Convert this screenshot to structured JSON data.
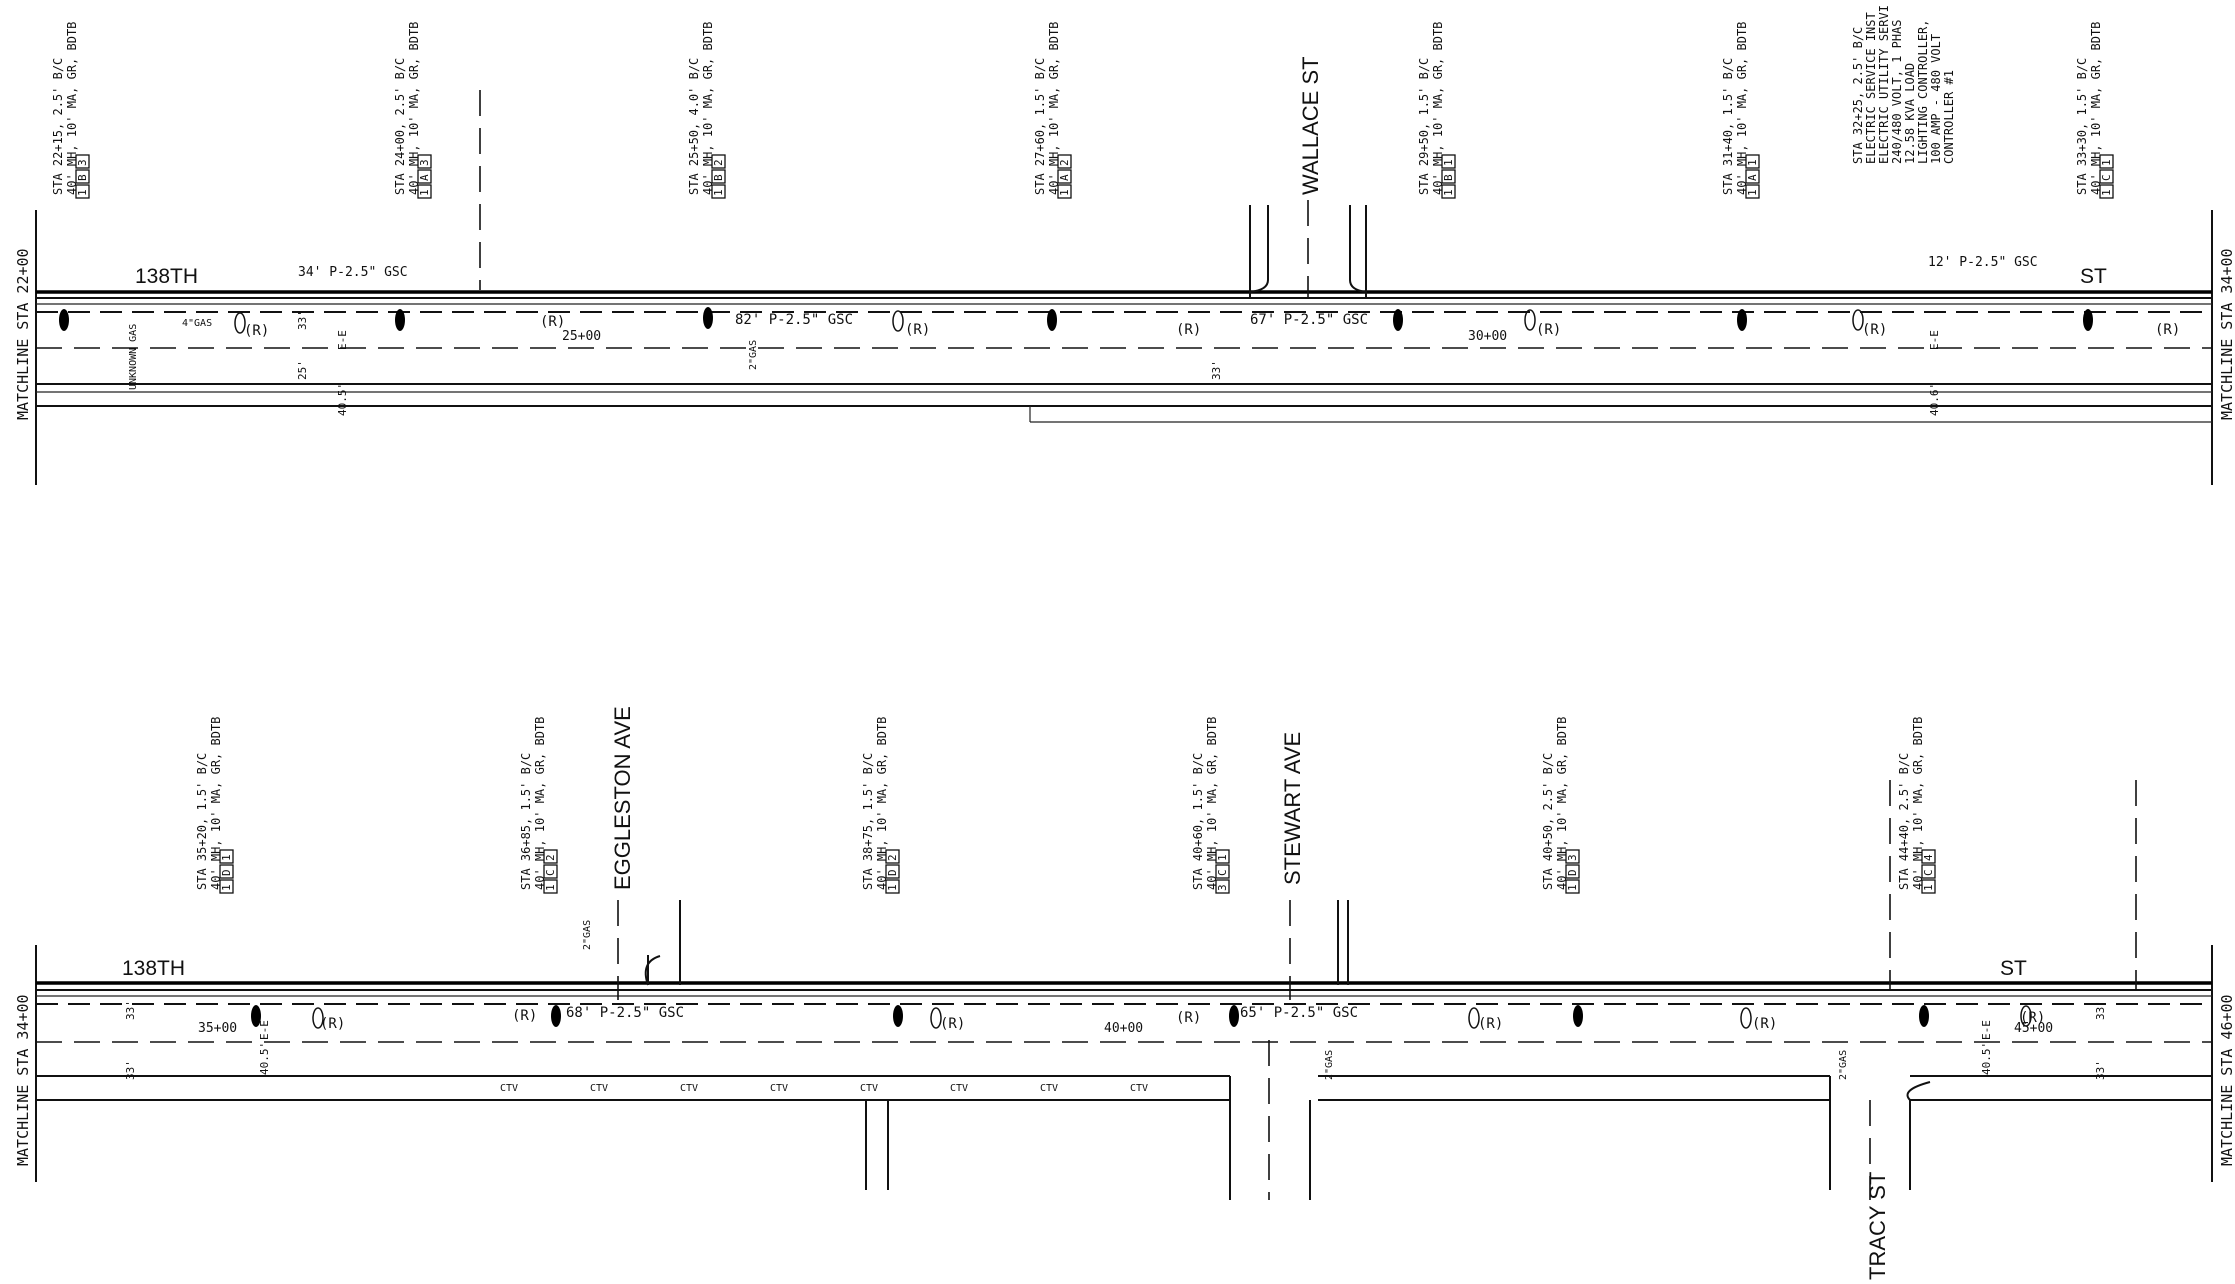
{
  "top_plan": {
    "matchline_left": "MATCHLINE STA 22+00",
    "matchline_right": "MATCHLINE STA 34+00",
    "street_west": "138TH",
    "street_east": "ST",
    "cross_street": "WALLACE ST",
    "station_labels": [
      "25+00",
      "30+00"
    ],
    "poles": [
      {
        "line1": "STA 22+15, 2.5' B/C",
        "line2": "40' MH, 10' MA, GR, BDTB",
        "boxes": [
          "1",
          "B",
          "3"
        ]
      },
      {
        "line1": "STA 24+00, 2.5' B/C",
        "line2": "40' MH, 10' MA, GR, BDTB",
        "boxes": [
          "1",
          "A",
          "3"
        ]
      },
      {
        "line1": "STA 25+50, 4.0' B/C",
        "line2": "40' MH, 10' MA, GR, BDTB",
        "boxes": [
          "1",
          "B",
          "2"
        ]
      },
      {
        "line1": "STA 27+60, 1.5' B/C",
        "line2": "40' MH, 10' MA, GR, BDTB",
        "boxes": [
          "1",
          "A",
          "2"
        ]
      },
      {
        "line1": "STA 29+50, 1.5' B/C",
        "line2": "40' MH, 10' MA, GR, BDTB",
        "boxes": [
          "1",
          "B",
          "1"
        ]
      },
      {
        "line1": "STA 31+40, 1.5' B/C",
        "line2": "40' MH, 10' MA, GR, BDTB",
        "boxes": [
          "1",
          "A",
          "1"
        ]
      },
      {
        "line1": "STA 33+30, 1.5' B/C",
        "line2": "40' MH, 10' MA, GR, BDTB",
        "boxes": [
          "1",
          "C",
          "1"
        ]
      }
    ],
    "electric_service": [
      "STA 32+25, 2.5' B/C",
      "ELECTRIC SERVICE INST",
      "ELECTRIC UTILITY SERVI",
      "240/480 VOLT, 1 PHAS",
      "12.58 KVA LOAD",
      "LIGHTING CONTROLLER,",
      "100 AMP - 480 VOLT",
      "CONTROLLER #1"
    ],
    "conduits": [
      "34' P-2.5\" GSC",
      "82' P-2.5\" GSC",
      "67' P-2.5\" GSC",
      "12' P-2.5\" GSC"
    ],
    "notes": [
      "(R)",
      "4\"GAS",
      "UNKNOWN GAS",
      "2\"GAS",
      "E-E",
      "33'",
      "40.5'",
      "25'",
      "40.6'"
    ]
  },
  "bottom_plan": {
    "matchline_left": "MATCHLINE STA 34+00",
    "matchline_right": "MATCHLINE STA 46+00",
    "street_west": "138TH",
    "street_east": "ST",
    "cross_streets": [
      "EGGLESTON AVE",
      "STEWART AVE",
      "TRACY ST"
    ],
    "station_labels": [
      "35+00",
      "40+00",
      "45+00"
    ],
    "poles": [
      {
        "line1": "STA 35+20, 1.5' B/C",
        "line2": "40' MH, 10' MA, GR, BDTB",
        "boxes": [
          "1",
          "D",
          "1"
        ]
      },
      {
        "line1": "STA 36+85, 1.5' B/C",
        "line2": "40' MH, 10' MA, GR, BDTB",
        "boxes": [
          "1",
          "C",
          "2"
        ]
      },
      {
        "line1": "STA 38+75, 1.5' B/C",
        "line2": "40' MH, 10' MA, GR, BDTB",
        "boxes": [
          "1",
          "D",
          "2"
        ]
      },
      {
        "line1": "STA 40+60, 1.5' B/C",
        "line2": "40' MH, 10' MA, GR, BDTB",
        "boxes": [
          "3",
          "C",
          "1"
        ]
      },
      {
        "line1": "STA 40+50, 2.5' B/C",
        "line2": "40' MH, 10' MA, GR, BDTB",
        "boxes": [
          "1",
          "D",
          "3"
        ]
      },
      {
        "line1": "STA 44+40, 2.5' B/C",
        "line2": "40' MH, 10' MA, GR, BDTB",
        "boxes": [
          "1",
          "C",
          "4"
        ]
      }
    ],
    "conduits": [
      "68' P-2.5\" GSC",
      "65' P-2.5\" GSC"
    ],
    "notes": [
      "(R)",
      "CTV",
      "2\"GAS",
      "E-E",
      "33'",
      "40.5'"
    ]
  }
}
